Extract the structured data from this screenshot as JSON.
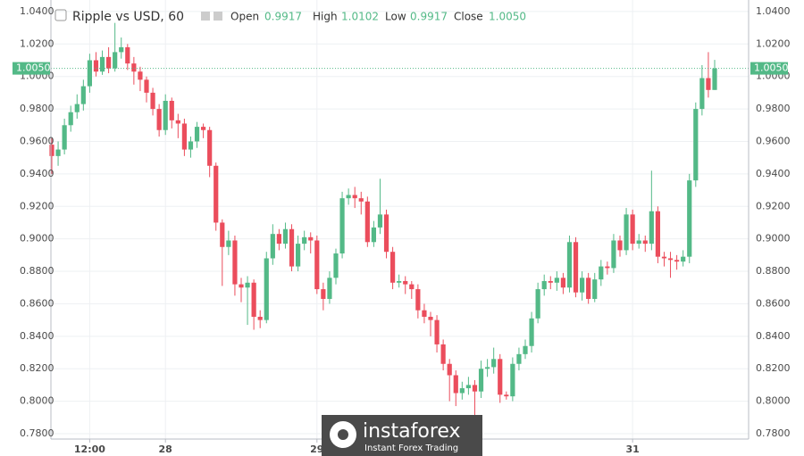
{
  "chart_data": {
    "type": "candlestick",
    "title": "Ripple vs USD, 60",
    "legend_labels": {
      "open": "Open",
      "high": "High",
      "low": "Low",
      "close": "Close"
    },
    "legend_values": {
      "open": "0.9917",
      "high": "1.0102",
      "low": "0.9917",
      "close": "1.0050"
    },
    "last_price": 1.005,
    "last_price_label": "1.0050",
    "up_color": "#53b987",
    "down_color": "#eb4d5c",
    "grid": true,
    "ylim": [
      0.7767,
      1.0471
    ],
    "yticks": [
      {
        "value": 1.04,
        "label": "1.0400"
      },
      {
        "value": 1.02,
        "label": "1.0200"
      },
      {
        "value": 1.0,
        "label": "1.0000"
      },
      {
        "value": 0.98,
        "label": "0.9800"
      },
      {
        "value": 0.96,
        "label": "0.9600"
      },
      {
        "value": 0.94,
        "label": "0.9400"
      },
      {
        "value": 0.92,
        "label": "0.9200"
      },
      {
        "value": 0.9,
        "label": "0.9000"
      },
      {
        "value": 0.88,
        "label": "0.8800"
      },
      {
        "value": 0.86,
        "label": "0.8600"
      },
      {
        "value": 0.84,
        "label": "0.8400"
      },
      {
        "value": 0.82,
        "label": "0.8200"
      },
      {
        "value": 0.8,
        "label": "0.8000"
      },
      {
        "value": 0.78,
        "label": "0.7800"
      }
    ],
    "categories": [
      null,
      null,
      null,
      null,
      null,
      null,
      "12:00",
      null,
      null,
      null,
      null,
      null,
      null,
      null,
      null,
      null,
      null,
      null,
      "28",
      null,
      null,
      null,
      null,
      null,
      null,
      null,
      null,
      null,
      null,
      null,
      null,
      null,
      null,
      null,
      null,
      null,
      null,
      null,
      null,
      null,
      null,
      null,
      "29",
      null,
      null,
      null,
      null,
      null,
      null,
      null,
      null,
      null,
      null,
      null,
      null,
      null,
      null,
      null,
      null,
      null,
      null,
      null,
      null,
      null,
      null,
      null,
      null,
      null,
      null,
      null,
      null,
      null,
      null,
      null,
      null,
      null,
      null,
      null,
      null,
      null,
      null,
      null,
      null,
      null,
      null,
      null,
      null,
      null,
      null,
      null,
      null,
      null,
      "31",
      null,
      null,
      null,
      null,
      null,
      null,
      null,
      null,
      null,
      null,
      null,
      null,
      null
    ],
    "open": [
      0.958,
      0.951,
      0.955,
      0.97,
      0.978,
      0.983,
      0.994,
      1.01,
      1.003,
      1.012,
      1.005,
      1.015,
      1.018,
      1.008,
      1.003,
      0.998,
      0.99,
      0.98,
      0.967,
      0.985,
      0.973,
      0.971,
      0.955,
      0.96,
      0.969,
      0.967,
      0.945,
      0.91,
      0.895,
      0.899,
      0.872,
      0.87,
      0.873,
      0.852,
      0.85,
      0.888,
      0.903,
      0.897,
      0.906,
      0.883,
      0.897,
      0.901,
      0.899,
      0.869,
      0.863,
      0.876,
      0.891,
      0.925,
      0.927,
      0.925,
      0.923,
      0.898,
      0.907,
      0.915,
      0.892,
      0.873,
      0.874,
      0.872,
      0.869,
      0.856,
      0.852,
      0.85,
      0.835,
      0.823,
      0.816,
      0.805,
      0.808,
      0.81,
      0.806,
      0.82,
      0.821,
      0.826,
      0.804,
      0.803,
      0.823,
      0.829,
      0.834,
      0.851,
      0.869,
      0.874,
      0.873,
      0.876,
      0.87,
      0.898,
      0.867,
      0.876,
      0.863,
      0.875,
      0.883,
      0.882,
      0.899,
      0.893,
      0.915,
      0.897,
      0.899,
      0.897,
      0.917,
      0.889,
      0.888,
      0.887,
      0.886,
      0.889,
      0.936,
      0.98,
      0.999,
      0.9917
    ],
    "high": [
      0.962,
      0.96,
      0.974,
      0.982,
      0.989,
      0.998,
      1.014,
      1.015,
      1.016,
      1.018,
      1.033,
      1.024,
      1.02,
      1.012,
      1.006,
      1.0,
      0.993,
      0.983,
      0.989,
      0.987,
      0.977,
      0.974,
      0.963,
      0.972,
      0.971,
      0.969,
      0.947,
      0.912,
      0.905,
      0.902,
      0.876,
      0.877,
      0.875,
      0.856,
      0.892,
      0.909,
      0.906,
      0.91,
      0.909,
      0.902,
      0.905,
      0.904,
      0.902,
      0.873,
      0.88,
      0.894,
      0.929,
      0.931,
      0.932,
      0.929,
      0.926,
      0.911,
      0.937,
      0.918,
      0.895,
      0.878,
      0.877,
      0.874,
      0.872,
      0.86,
      0.855,
      0.853,
      0.838,
      0.826,
      0.819,
      0.812,
      0.815,
      0.813,
      0.825,
      0.826,
      0.833,
      0.829,
      0.806,
      0.827,
      0.833,
      0.838,
      0.855,
      0.873,
      0.878,
      0.877,
      0.88,
      0.879,
      0.902,
      0.901,
      0.88,
      0.879,
      0.879,
      0.887,
      0.886,
      0.903,
      0.902,
      0.919,
      0.918,
      0.903,
      0.902,
      0.942,
      0.92,
      0.892,
      0.892,
      0.89,
      0.893,
      0.94,
      0.984,
      1.007,
      1.015,
      1.0102
    ],
    "low": [
      0.94,
      0.945,
      0.952,
      0.966,
      0.974,
      0.979,
      0.99,
      1.0,
      1.001,
      1.002,
      1.003,
      1.011,
      1.004,
      0.995,
      0.991,
      0.984,
      0.976,
      0.963,
      0.964,
      0.968,
      0.962,
      0.951,
      0.95,
      0.956,
      0.962,
      0.938,
      0.905,
      0.871,
      0.89,
      0.865,
      0.861,
      0.847,
      0.844,
      0.845,
      0.848,
      0.884,
      0.893,
      0.894,
      0.88,
      0.88,
      0.893,
      0.891,
      0.866,
      0.856,
      0.86,
      0.872,
      0.888,
      0.921,
      0.919,
      0.915,
      0.895,
      0.895,
      0.903,
      0.888,
      0.869,
      0.87,
      0.866,
      0.863,
      0.851,
      0.848,
      0.84,
      0.83,
      0.819,
      0.8,
      0.797,
      0.801,
      0.804,
      0.79,
      0.802,
      0.815,
      0.817,
      0.799,
      0.801,
      0.8,
      0.819,
      0.826,
      0.83,
      0.848,
      0.865,
      0.869,
      0.868,
      0.866,
      0.867,
      0.864,
      0.862,
      0.86,
      0.861,
      0.871,
      0.878,
      0.879,
      0.889,
      0.89,
      0.893,
      0.894,
      0.892,
      0.893,
      0.885,
      0.883,
      0.876,
      0.881,
      0.883,
      0.885,
      0.932,
      0.976,
      0.987,
      0.9917
    ],
    "close": [
      0.951,
      0.955,
      0.97,
      0.978,
      0.983,
      0.994,
      1.01,
      1.003,
      1.012,
      1.005,
      1.015,
      1.018,
      1.008,
      1.003,
      0.998,
      0.99,
      0.98,
      0.967,
      0.985,
      0.973,
      0.971,
      0.955,
      0.96,
      0.969,
      0.967,
      0.945,
      0.91,
      0.895,
      0.899,
      0.872,
      0.87,
      0.873,
      0.852,
      0.85,
      0.888,
      0.903,
      0.897,
      0.906,
      0.883,
      0.897,
      0.901,
      0.899,
      0.869,
      0.863,
      0.876,
      0.891,
      0.925,
      0.927,
      0.925,
      0.923,
      0.898,
      0.907,
      0.915,
      0.892,
      0.873,
      0.874,
      0.872,
      0.869,
      0.856,
      0.852,
      0.85,
      0.835,
      0.823,
      0.816,
      0.805,
      0.808,
      0.81,
      0.806,
      0.82,
      0.821,
      0.826,
      0.804,
      0.803,
      0.823,
      0.829,
      0.834,
      0.851,
      0.869,
      0.874,
      0.873,
      0.876,
      0.87,
      0.898,
      0.867,
      0.876,
      0.863,
      0.875,
      0.883,
      0.882,
      0.899,
      0.893,
      0.915,
      0.897,
      0.899,
      0.897,
      0.917,
      0.889,
      0.888,
      0.887,
      0.886,
      0.889,
      0.936,
      0.98,
      0.999,
      0.9917,
      1.005
    ]
  },
  "watermark": {
    "brand": "instaforex",
    "tagline": "Instant Forex Trading"
  }
}
